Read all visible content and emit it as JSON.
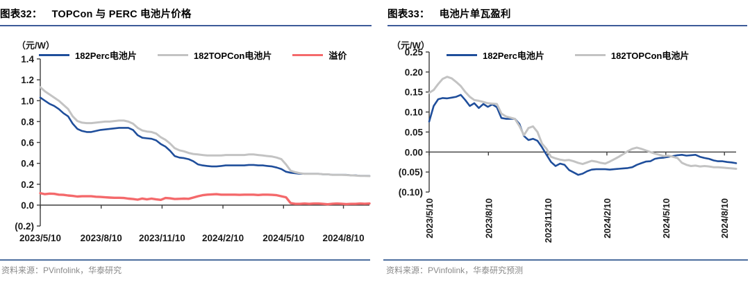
{
  "colors": {
    "perc_blue": "#1F4E9B",
    "topcon_gray": "#C3C3C3",
    "premium_red": "#F4696B",
    "title_underline": "#3C5A98",
    "footer_rule": "#4C6E9E",
    "source_text": "#8A8A8A",
    "axis_text": "#1a1a1a",
    "axis_line": "#3d3d3d"
  },
  "chart_data": [
    {
      "type": "line",
      "figure_label": "图表32：",
      "title": "TOPCon 与 PERC 电池片价格",
      "unit_label": "（元/W）",
      "source": "资料来源：PVinfolink，华泰研究",
      "ylim": [
        -0.2,
        1.4
      ],
      "yticks": {
        "values": [
          1.4,
          1.2,
          1.0,
          0.8,
          0.6,
          0.4,
          0.2,
          0.0,
          -0.2
        ],
        "labels": [
          "1.4",
          "1.2",
          "1.0",
          "0.8",
          "0.6",
          "0.4",
          "0.2",
          "0.0",
          "(0.2)"
        ]
      },
      "xticks": {
        "fracs": [
          0,
          0.185,
          0.37,
          0.555,
          0.739,
          0.921
        ],
        "labels": [
          "2023/5/10",
          "2023/8/10",
          "2023/11/10",
          "2024/2/10",
          "2024/5/10",
          "2024/8/10"
        ],
        "rotated": false
      },
      "legend_position": "top",
      "grid": false,
      "series": [
        {
          "name": "182Perc电池片",
          "color": "#1F4E9B",
          "values": [
            1.03,
            1.0,
            0.97,
            0.95,
            0.92,
            0.88,
            0.85,
            0.78,
            0.73,
            0.71,
            0.7,
            0.7,
            0.71,
            0.72,
            0.725,
            0.73,
            0.735,
            0.74,
            0.74,
            0.74,
            0.72,
            0.67,
            0.645,
            0.64,
            0.635,
            0.62,
            0.585,
            0.56,
            0.52,
            0.47,
            0.455,
            0.45,
            0.44,
            0.42,
            0.39,
            0.38,
            0.375,
            0.37,
            0.37,
            0.375,
            0.38,
            0.38,
            0.38,
            0.38,
            0.38,
            0.385,
            0.385,
            0.38,
            0.38,
            0.375,
            0.37,
            0.36,
            0.345,
            0.32,
            0.31,
            0.305,
            0.3,
            0.3,
            0.3,
            0.3,
            0.3,
            0.295,
            0.295,
            0.29,
            0.29,
            0.29,
            0.29,
            0.285,
            0.285,
            0.28,
            0.28,
            0.28
          ]
        },
        {
          "name": "182TOPCon电池片",
          "color": "#C3C3C3",
          "values": [
            1.13,
            1.09,
            1.06,
            1.03,
            1.0,
            0.96,
            0.92,
            0.85,
            0.805,
            0.79,
            0.785,
            0.785,
            0.79,
            0.795,
            0.8,
            0.8,
            0.805,
            0.81,
            0.81,
            0.8,
            0.78,
            0.74,
            0.715,
            0.705,
            0.7,
            0.685,
            0.65,
            0.625,
            0.59,
            0.545,
            0.525,
            0.515,
            0.5,
            0.49,
            0.485,
            0.48,
            0.475,
            0.475,
            0.475,
            0.475,
            0.48,
            0.48,
            0.48,
            0.48,
            0.48,
            0.485,
            0.485,
            0.48,
            0.475,
            0.47,
            0.465,
            0.455,
            0.44,
            0.39,
            0.33,
            0.315,
            0.305,
            0.3,
            0.3,
            0.3,
            0.3,
            0.295,
            0.295,
            0.29,
            0.29,
            0.29,
            0.288,
            0.285,
            0.283,
            0.28,
            0.28,
            0.278
          ]
        },
        {
          "name": "溢价",
          "color": "#F4696B",
          "values": [
            0.115,
            0.105,
            0.11,
            0.108,
            0.1,
            0.098,
            0.092,
            0.088,
            0.082,
            0.085,
            0.085,
            0.085,
            0.08,
            0.078,
            0.075,
            0.072,
            0.07,
            0.07,
            0.068,
            0.062,
            0.058,
            0.052,
            0.063,
            0.055,
            0.062,
            0.055,
            0.05,
            0.068,
            0.065,
            0.058,
            0.06,
            0.062,
            0.06,
            0.072,
            0.085,
            0.095,
            0.1,
            0.103,
            0.105,
            0.1,
            0.1,
            0.1,
            0.1,
            0.098,
            0.1,
            0.1,
            0.1,
            0.097,
            0.1,
            0.1,
            0.098,
            0.095,
            0.085,
            0.075,
            0.02,
            0.012,
            0.012,
            0.015,
            0.012,
            0.015,
            0.015,
            0.012,
            0.008,
            0.013,
            0.015,
            0.013,
            0.01,
            0.012,
            0.012,
            0.015,
            0.013,
            0.015
          ]
        }
      ]
    },
    {
      "type": "line",
      "figure_label": "图表33：",
      "title": "电池片单瓦盈利",
      "unit_label": "（元/W）",
      "source": "资料来源：PVinfolink，华泰研究预测",
      "ylim": [
        -0.1,
        0.25
      ],
      "yticks": {
        "values": [
          0.25,
          0.2,
          0.15,
          0.1,
          0.05,
          0.0,
          -0.05,
          -0.1
        ],
        "labels": [
          "0.25",
          "0.20",
          "0.15",
          "0.10",
          "0.05",
          "0.00",
          "(0.05)",
          "(0.10)"
        ]
      },
      "xticks": {
        "fracs": [
          0,
          0.193,
          0.387,
          0.579,
          0.771,
          0.962
        ],
        "labels": [
          "2023/5/10",
          "2023/8/10",
          "2023/11/10",
          "2024/2/10",
          "2024/5/10",
          "2024/8/10"
        ],
        "rotated": true
      },
      "legend_position": "top",
      "grid": false,
      "series": [
        {
          "name": "182Perc电池片",
          "color": "#1F4E9B",
          "values": [
            0.076,
            0.115,
            0.132,
            0.135,
            0.134,
            0.136,
            0.138,
            0.143,
            0.13,
            0.115,
            0.122,
            0.11,
            0.12,
            0.113,
            0.119,
            0.112,
            0.085,
            0.083,
            0.083,
            0.083,
            0.07,
            0.04,
            0.03,
            0.033,
            0.028,
            0.012,
            -0.007,
            -0.025,
            -0.035,
            -0.029,
            -0.032,
            -0.045,
            -0.051,
            -0.057,
            -0.054,
            -0.048,
            -0.044,
            -0.043,
            -0.043,
            -0.043,
            -0.044,
            -0.043,
            -0.042,
            -0.041,
            -0.04,
            -0.038,
            -0.032,
            -0.028,
            -0.024,
            -0.023,
            -0.017,
            -0.015,
            -0.014,
            -0.012,
            -0.01,
            -0.008,
            -0.007,
            -0.009,
            -0.008,
            -0.007,
            -0.012,
            -0.015,
            -0.017,
            -0.021,
            -0.023,
            -0.023,
            -0.025,
            -0.026,
            -0.028
          ]
        },
        {
          "name": "182TOPCon电池片",
          "color": "#C3C3C3",
          "values": [
            0.148,
            0.155,
            0.17,
            0.183,
            0.188,
            0.184,
            0.175,
            0.165,
            0.15,
            0.138,
            0.13,
            0.128,
            0.125,
            0.122,
            0.121,
            0.12,
            0.096,
            0.089,
            0.086,
            0.083,
            0.065,
            0.042,
            0.06,
            0.064,
            0.05,
            0.021,
            0.008,
            -0.012,
            -0.016,
            -0.019,
            -0.021,
            -0.02,
            -0.023,
            -0.027,
            -0.03,
            -0.026,
            -0.022,
            -0.024,
            -0.027,
            -0.029,
            -0.024,
            -0.018,
            -0.012,
            -0.005,
            0.002,
            0.008,
            0.011,
            0.008,
            0.004,
            0.0,
            -0.004,
            -0.007,
            -0.01,
            -0.009,
            -0.012,
            -0.015,
            -0.027,
            -0.032,
            -0.035,
            -0.034,
            -0.036,
            -0.035,
            -0.036,
            -0.038,
            -0.038,
            -0.039,
            -0.04,
            -0.041,
            -0.042
          ]
        }
      ]
    }
  ]
}
